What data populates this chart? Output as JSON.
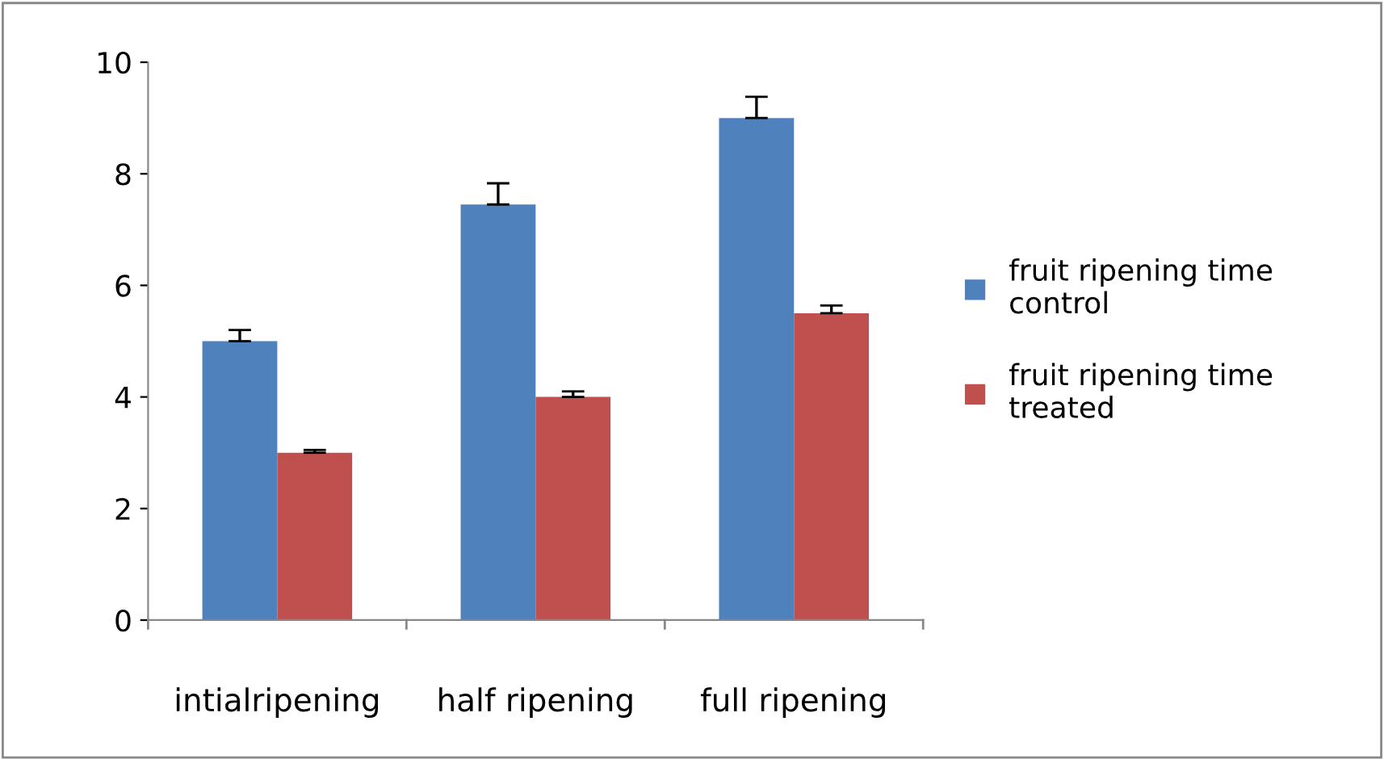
{
  "chart_data": {
    "type": "bar",
    "categories": [
      "intialripening",
      "half ripening",
      "full ripening"
    ],
    "series": [
      {
        "name": "fruit ripening time\ncontrol",
        "color": "#4f81bd",
        "values": [
          5,
          7.45,
          9
        ],
        "errors": [
          [
            5,
            5.2
          ],
          [
            7.45,
            7.83
          ],
          [
            9,
            9.38
          ]
        ]
      },
      {
        "name": "fruit ripening time\ntreated",
        "color": "#c0504d",
        "values": [
          3,
          4,
          5.5
        ],
        "errors": [
          [
            3,
            3.05
          ],
          [
            4,
            4.1
          ],
          [
            5.5,
            5.64
          ]
        ]
      }
    ],
    "ylim": [
      0,
      10
    ],
    "yticks": [
      0,
      2,
      4,
      6,
      8,
      10
    ],
    "grid": false,
    "legend": "right"
  }
}
